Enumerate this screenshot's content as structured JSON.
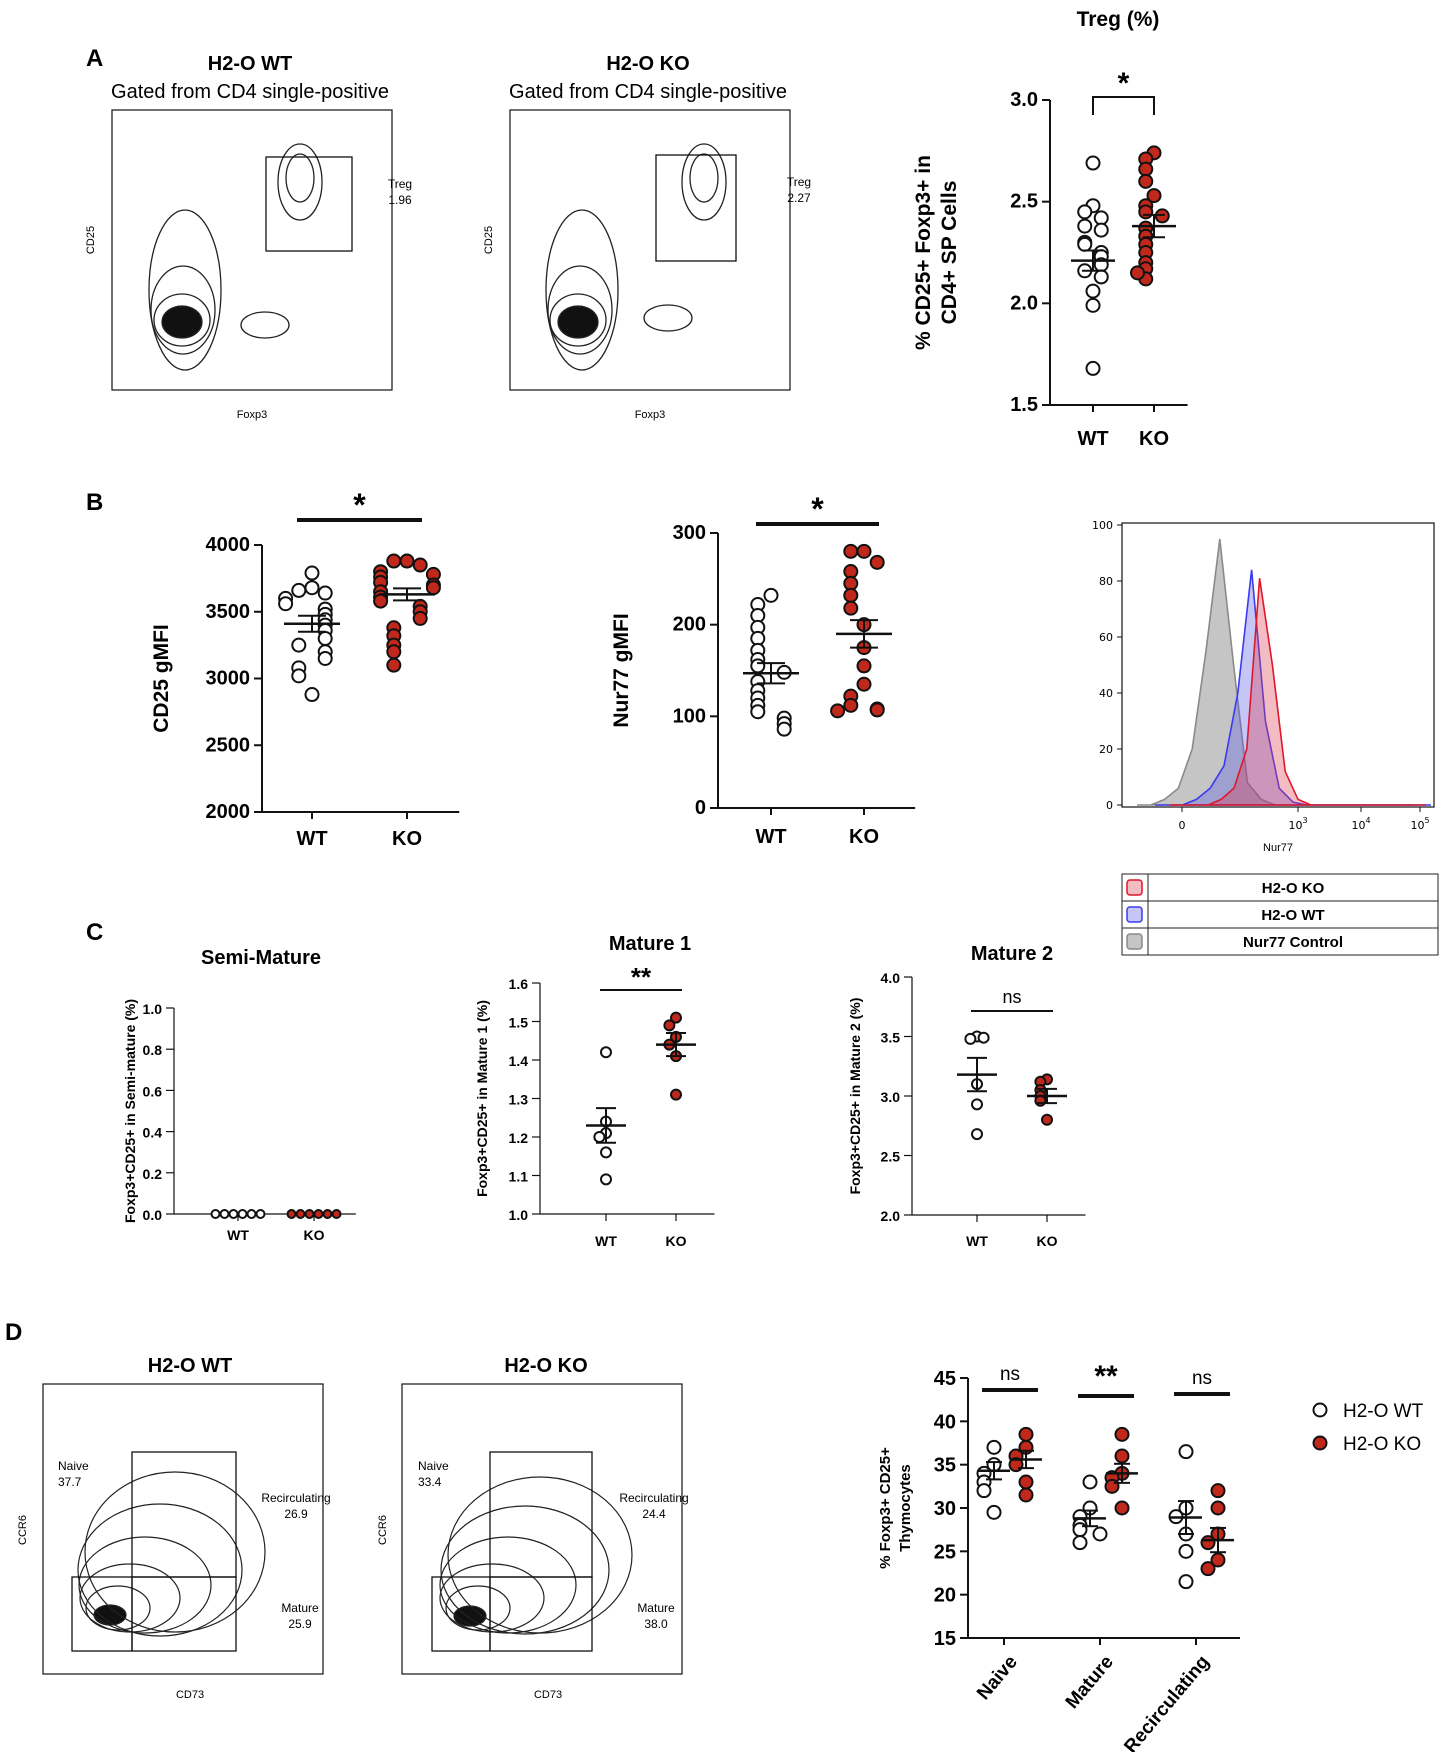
{
  "panels": {
    "A": {
      "letter": "A",
      "flow": [
        {
          "title": "H2-O WT",
          "subtitle": "Gated from CD4 single-positive",
          "y_label": "CD25",
          "x_label": "Foxp3",
          "gate_label": "Treg",
          "gate_value": "1.96"
        },
        {
          "title": "H2-O KO",
          "subtitle": "Gated from CD4 single-positive",
          "y_label": "CD25",
          "x_label": "Foxp3",
          "gate_label": "Treg",
          "gate_value": "2.27"
        }
      ]
    },
    "B": {
      "letter": "B"
    },
    "C": {
      "letter": "C"
    },
    "D": {
      "letter": "D",
      "flow": [
        {
          "title": "H2-O WT",
          "y_label": "CCR6",
          "x_label": "CD73",
          "gates": [
            {
              "label": "Naive",
              "value": "37.7"
            },
            {
              "label": "Recirculating",
              "value": "26.9"
            },
            {
              "label": "Mature",
              "value": "25.9"
            }
          ]
        },
        {
          "title": "H2-O KO",
          "y_label": "CCR6",
          "x_label": "CD73",
          "gates": [
            {
              "label": "Naive",
              "value": "33.4"
            },
            {
              "label": "Recirculating",
              "value": "24.4"
            },
            {
              "label": "Mature",
              "value": "38.0"
            }
          ]
        }
      ]
    }
  },
  "colors": {
    "wt_fill": "#ffffff",
    "ko_fill": "#c0281c",
    "stroke": "#111111",
    "hist_ko": "#e0162b",
    "hist_wt": "#3b3bf0",
    "hist_ctrl": "#8a8a8a"
  },
  "chart_data": [
    {
      "id": "treg-pct",
      "type": "scatter",
      "title": "Treg (%)",
      "ylabel_lines": [
        "% CD25+ Foxp3+ in",
        "CD4+ SP Cells"
      ],
      "categories": [
        "WT",
        "KO"
      ],
      "ylim": [
        1.5,
        3.0
      ],
      "yticks": [
        "1.5",
        "2.0",
        "2.5",
        "3.0"
      ],
      "significance": "*",
      "series": [
        {
          "name": "WT",
          "values": [
            2.69,
            2.48,
            2.45,
            2.42,
            2.38,
            2.36,
            2.3,
            2.29,
            2.25,
            2.23,
            2.19,
            2.16,
            2.13,
            2.06,
            1.99,
            1.68
          ],
          "mean": 2.21,
          "sem": 0.05
        },
        {
          "name": "KO",
          "values": [
            2.74,
            2.71,
            2.66,
            2.6,
            2.53,
            2.48,
            2.45,
            2.43,
            2.37,
            2.33,
            2.29,
            2.25,
            2.2,
            2.17,
            2.12,
            2.15
          ],
          "mean": 2.38,
          "sem": 0.055
        }
      ]
    },
    {
      "id": "cd25-gmfi",
      "type": "scatter",
      "ylabel": "CD25 gMFI",
      "categories": [
        "WT",
        "KO"
      ],
      "ylim": [
        2000,
        4000
      ],
      "yticks": [
        "2000",
        "2500",
        "3000",
        "3500",
        "4000"
      ],
      "significance": "*",
      "series": [
        {
          "name": "WT",
          "values": [
            3790,
            3680,
            3660,
            3640,
            3600,
            3560,
            3520,
            3480,
            3440,
            3400,
            3360,
            3300,
            3250,
            3200,
            3150,
            3080,
            3020,
            2880
          ],
          "mean": 3410,
          "sem": 60
        },
        {
          "name": "KO",
          "values": [
            3880,
            3880,
            3850,
            3800,
            3780,
            3760,
            3720,
            3700,
            3680,
            3650,
            3610,
            3580,
            3540,
            3500,
            3450,
            3380,
            3320,
            3250,
            3200,
            3100
          ],
          "mean": 3630,
          "sem": 45
        }
      ]
    },
    {
      "id": "nur77-gmfi",
      "type": "scatter",
      "ylabel": "Nur77 gMFI",
      "categories": [
        "WT",
        "KO"
      ],
      "ylim": [
        0,
        300
      ],
      "yticks": [
        "0",
        "100",
        "200",
        "300"
      ],
      "significance": "*",
      "series": [
        {
          "name": "WT",
          "values": [
            232,
            222,
            210,
            197,
            185,
            172,
            162,
            155,
            148,
            138,
            128,
            120,
            112,
            105,
            98,
            92,
            86
          ],
          "mean": 147,
          "sem": 11
        },
        {
          "name": "KO",
          "values": [
            280,
            280,
            268,
            258,
            245,
            232,
            218,
            200,
            175,
            155,
            135,
            122,
            112,
            108,
            107,
            106
          ],
          "mean": 190,
          "sem": 15
        }
      ]
    },
    {
      "id": "nur77-histogram",
      "type": "area",
      "xlabel": "Nur77",
      "xtick_labels": [
        "0",
        "10",
        "10",
        "10"
      ],
      "xtick_exponents": [
        "",
        "3",
        "4",
        "5"
      ],
      "ylim": [
        0,
        100
      ],
      "yticks": [
        "0",
        "20",
        "40",
        "60",
        "80",
        "100"
      ],
      "x": [
        0,
        0.05,
        0.1,
        0.15,
        0.2,
        0.25,
        0.3,
        0.35,
        0.4,
        0.45,
        0.5,
        0.55,
        0.6,
        0.65,
        0.7,
        0.75,
        0.8,
        0.85,
        0.9,
        0.95,
        1.0
      ],
      "series": [
        {
          "name": "Nur77 Control",
          "values": [
            0,
            0,
            2,
            6,
            20,
            55,
            95,
            50,
            8,
            2,
            0,
            0,
            0,
            0,
            0,
            0,
            0,
            0,
            0,
            0,
            0
          ]
        },
        {
          "name": "H2-O WT",
          "values": [
            0,
            0,
            0,
            2,
            6,
            14,
            40,
            84,
            30,
            6,
            1,
            0,
            0,
            0,
            0,
            0,
            0,
            0,
            0,
            0,
            0
          ]
        },
        {
          "name": "H2-O KO",
          "values": [
            0,
            0,
            0,
            0,
            2,
            6,
            20,
            81,
            50,
            12,
            2,
            0,
            0,
            0,
            0,
            0,
            0,
            0,
            0,
            0,
            0
          ]
        }
      ],
      "legend": [
        "H2-O KO",
        "H2-O WT",
        "Nur77 Control"
      ]
    },
    {
      "id": "semi-mature",
      "type": "scatter",
      "title": "Semi-Mature",
      "ylabel": "Foxp3+CD25+ in Semi-mature (%)",
      "categories": [
        "WT",
        "KO"
      ],
      "ylim": [
        0.0,
        1.0
      ],
      "yticks": [
        "0.0",
        "0.2",
        "0.4",
        "0.6",
        "0.8",
        "1.0"
      ],
      "significance": "",
      "series": [
        {
          "name": "WT",
          "values": [
            0,
            0,
            0,
            0,
            0,
            0
          ],
          "mean": 0,
          "sem": 0
        },
        {
          "name": "KO",
          "values": [
            0,
            0,
            0,
            0,
            0,
            0
          ],
          "mean": 0,
          "sem": 0
        }
      ]
    },
    {
      "id": "mature-1",
      "type": "scatter",
      "title": "Mature 1",
      "ylabel": "Foxp3+CD25+ in Mature 1 (%)",
      "categories": [
        "WT",
        "KO"
      ],
      "ylim": [
        1.0,
        1.6
      ],
      "yticks": [
        "1.0",
        "1.1",
        "1.2",
        "1.3",
        "1.4",
        "1.5",
        "1.6"
      ],
      "significance": "**",
      "series": [
        {
          "name": "WT",
          "values": [
            1.42,
            1.24,
            1.21,
            1.2,
            1.16,
            1.09
          ],
          "mean": 1.23,
          "sem": 0.045
        },
        {
          "name": "KO",
          "values": [
            1.51,
            1.49,
            1.46,
            1.44,
            1.41,
            1.31
          ],
          "mean": 1.44,
          "sem": 0.03
        }
      ]
    },
    {
      "id": "mature-2",
      "type": "scatter",
      "title": "Mature 2",
      "ylabel": "Foxp3+CD25+ in Mature 2 (%)",
      "categories": [
        "WT",
        "KO"
      ],
      "ylim": [
        2.0,
        4.0
      ],
      "yticks": [
        "2.0",
        "2.5",
        "3.0",
        "3.5",
        "4.0"
      ],
      "significance": "ns",
      "series": [
        {
          "name": "WT",
          "values": [
            3.5,
            3.48,
            3.49,
            3.1,
            2.93,
            2.68
          ],
          "mean": 3.18,
          "sem": 0.14
        },
        {
          "name": "KO",
          "values": [
            3.14,
            3.12,
            3.05,
            3.0,
            2.96,
            2.8
          ],
          "mean": 3.0,
          "sem": 0.06
        }
      ]
    },
    {
      "id": "d-grouped",
      "type": "scatter",
      "ylabel_lines": [
        "% Foxp3+ CD25+",
        "Thymocytes"
      ],
      "categories": [
        "Naive",
        "Mature",
        "Recirculating"
      ],
      "ylim": [
        15,
        45
      ],
      "yticks": [
        "15",
        "20",
        "25",
        "30",
        "35",
        "40",
        "45"
      ],
      "significance": [
        "ns",
        "**",
        "ns"
      ],
      "legend": [
        "H2-O WT",
        "H2-O KO"
      ],
      "series": [
        {
          "name": "H2-O WT",
          "values": [
            [
              37,
              35,
              34,
              33,
              32,
              29.5
            ],
            [
              33,
              30,
              29,
              28,
              27.5,
              27,
              26
            ],
            [
              36.5,
              30,
              29,
              27,
              25,
              21.5
            ]
          ],
          "mean": [
            34.3,
            28.8,
            28.9
          ],
          "sem": [
            1.0,
            0.9,
            1.9
          ]
        },
        {
          "name": "H2-O KO",
          "values": [
            [
              38.5,
              37,
              36,
              35,
              33,
              31.5
            ],
            [
              38.5,
              36,
              34,
              33.5,
              32.5,
              30
            ],
            [
              32,
              30,
              27,
              26,
              24,
              23
            ]
          ],
          "mean": [
            35.6,
            34.0,
            26.3
          ],
          "sem": [
            1.0,
            1.1,
            1.4
          ]
        }
      ]
    }
  ]
}
